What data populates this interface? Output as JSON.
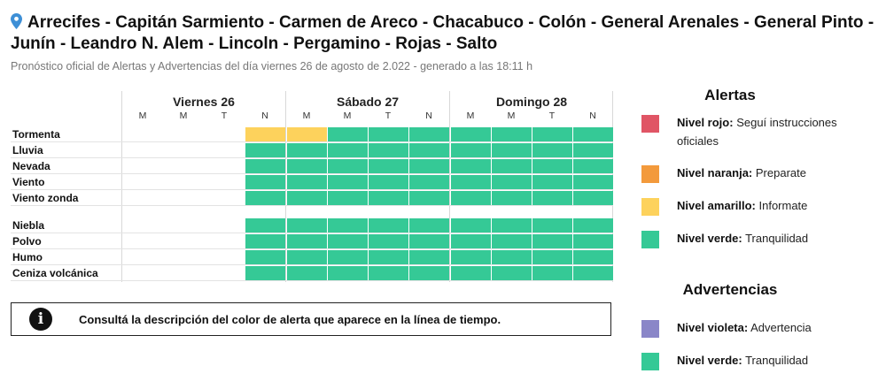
{
  "header": {
    "title": "Arrecifes - Capitán Sarmiento - Carmen de Areco - Chacabuco - Colón - General Arenales - General Pinto - Junín - Leandro N. Alem - Lincoln - Pergamino - Rojas - Salto",
    "subtitle": "Pronóstico oficial de Alertas y Advertencias del día viernes 26 de agosto de 2.022 - generado a las 18:11 h"
  },
  "colors": {
    "rojo": "#e05565",
    "naranja": "#f39a3c",
    "amarillo": "#fdd25c",
    "verde": "#35c996",
    "violeta": "#8a86c8",
    "empty": "#ffffff"
  },
  "timeline": {
    "days": [
      {
        "label": "Viernes 26",
        "slots": [
          "M",
          "M",
          "T",
          "N"
        ]
      },
      {
        "label": "Sábado 27",
        "slots": [
          "M",
          "M",
          "T",
          "N"
        ]
      },
      {
        "label": "Domingo 28",
        "slots": [
          "M",
          "M",
          "T",
          "N"
        ]
      }
    ],
    "rows": [
      {
        "label": "Tormenta",
        "levels": [
          "empty",
          "empty",
          "empty",
          "amarillo",
          "amarillo",
          "verde",
          "verde",
          "verde",
          "verde",
          "verde",
          "verde",
          "verde"
        ]
      },
      {
        "label": "Lluvia",
        "levels": [
          "empty",
          "empty",
          "empty",
          "verde",
          "verde",
          "verde",
          "verde",
          "verde",
          "verde",
          "verde",
          "verde",
          "verde"
        ]
      },
      {
        "label": "Nevada",
        "levels": [
          "empty",
          "empty",
          "empty",
          "verde",
          "verde",
          "verde",
          "verde",
          "verde",
          "verde",
          "verde",
          "verde",
          "verde"
        ]
      },
      {
        "label": "Viento",
        "levels": [
          "empty",
          "empty",
          "empty",
          "verde",
          "verde",
          "verde",
          "verde",
          "verde",
          "verde",
          "verde",
          "verde",
          "verde"
        ]
      },
      {
        "label": "Viento zonda",
        "levels": [
          "empty",
          "empty",
          "empty",
          "verde",
          "verde",
          "verde",
          "verde",
          "verde",
          "verde",
          "verde",
          "verde",
          "verde"
        ]
      },
      {
        "label": "Niebla",
        "levels": [
          "empty",
          "empty",
          "empty",
          "verde",
          "verde",
          "verde",
          "verde",
          "verde",
          "verde",
          "verde",
          "verde",
          "verde"
        ]
      },
      {
        "label": "Polvo",
        "levels": [
          "empty",
          "empty",
          "empty",
          "verde",
          "verde",
          "verde",
          "verde",
          "verde",
          "verde",
          "verde",
          "verde",
          "verde"
        ]
      },
      {
        "label": "Humo",
        "levels": [
          "empty",
          "empty",
          "empty",
          "verde",
          "verde",
          "verde",
          "verde",
          "verde",
          "verde",
          "verde",
          "verde",
          "verde"
        ]
      },
      {
        "label": "Ceniza volcánica",
        "levels": [
          "empty",
          "empty",
          "empty",
          "verde",
          "verde",
          "verde",
          "verde",
          "verde",
          "verde",
          "verde",
          "verde",
          "verde"
        ]
      }
    ]
  },
  "info": {
    "icon": "info-icon",
    "text": "Consultá la descripción del color de alerta que aparece en la línea de tiempo."
  },
  "legend": {
    "alertas_title": "Alertas",
    "alertas": [
      {
        "color": "rojo",
        "name": "Nivel rojo:",
        "desc": " Seguí instrucciones oficiales"
      },
      {
        "color": "naranja",
        "name": "Nivel naranja:",
        "desc": " Preparate"
      },
      {
        "color": "amarillo",
        "name": "Nivel amarillo:",
        "desc": " Informate"
      },
      {
        "color": "verde",
        "name": "Nivel verde:",
        "desc": " Tranquilidad"
      }
    ],
    "advertencias_title": "Advertencias",
    "advertencias": [
      {
        "color": "violeta",
        "name": "Nivel violeta:",
        "desc": " Advertencia"
      },
      {
        "color": "verde",
        "name": "Nivel verde:",
        "desc": " Tranquilidad"
      }
    ]
  }
}
